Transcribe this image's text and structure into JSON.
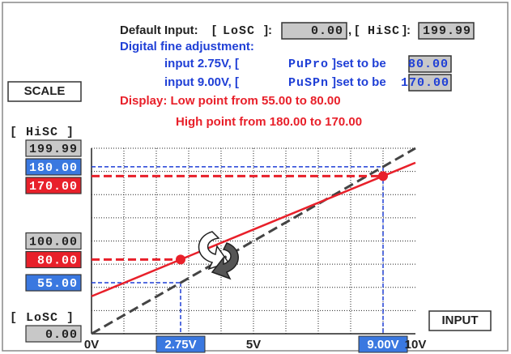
{
  "header": {
    "default": {
      "label": "Default Input:",
      "open1": "[",
      "low_code": "LoSC",
      "close1": "]:",
      "low_value": "0.00",
      "sep": ", [",
      "high_code": "HiSC",
      "close2": "]:",
      "high_value": "199.99"
    },
    "fine_title": "Digital fine adjustment:",
    "fine": [
      {
        "text": "input 2.75V, [",
        "code": "PuPro",
        "suffix": "]set to be",
        "value": "80.00"
      },
      {
        "text": "input 9.00V, [",
        "code": "PuSPn",
        "suffix": "]set to be",
        "value": "170.00"
      }
    ],
    "display": [
      "Display: Low point from 55.00 to 80.00",
      "High point from 180.00 to 170.00"
    ]
  },
  "scale_label": "SCALE",
  "input_label": "INPUT",
  "y_axis": {
    "range": [
      0,
      199.99
    ],
    "high_code_label": "[ HiSC ]",
    "low_code_label": "[ LoSC ]",
    "ticks": [
      {
        "value": 199.99,
        "label": "199.99",
        "fill": "#c8c8c8"
      },
      {
        "value": 180,
        "label": "180.00",
        "fill": "#3a78e0"
      },
      {
        "value": 170,
        "label": "170.00",
        "fill": "#e8202a"
      },
      {
        "value": 100,
        "label": "100.00",
        "fill": "#c8c8c8"
      },
      {
        "value": 80,
        "label": "80.00",
        "fill": "#e8202a"
      },
      {
        "value": 55,
        "label": "55.00",
        "fill": "#3a78e0"
      },
      {
        "value": 0,
        "label": "0.00",
        "fill": "#c8c8c8"
      }
    ]
  },
  "x_axis": {
    "range": [
      0,
      10
    ],
    "ticks": [
      {
        "value": 0,
        "label": "0V"
      },
      {
        "value": 2.75,
        "label": "2.75V",
        "fill": "#3a78e0"
      },
      {
        "value": 5,
        "label": "5V"
      },
      {
        "value": 9,
        "label": "9.00V",
        "fill": "#3a78e0"
      },
      {
        "value": 10,
        "label": "10V"
      }
    ]
  },
  "original_points": [
    {
      "x": 2.75,
      "y": 55
    },
    {
      "x": 9,
      "y": 180
    }
  ],
  "adjusted_points": [
    {
      "x": 2.75,
      "y": 80
    },
    {
      "x": 9,
      "y": 170
    }
  ]
}
